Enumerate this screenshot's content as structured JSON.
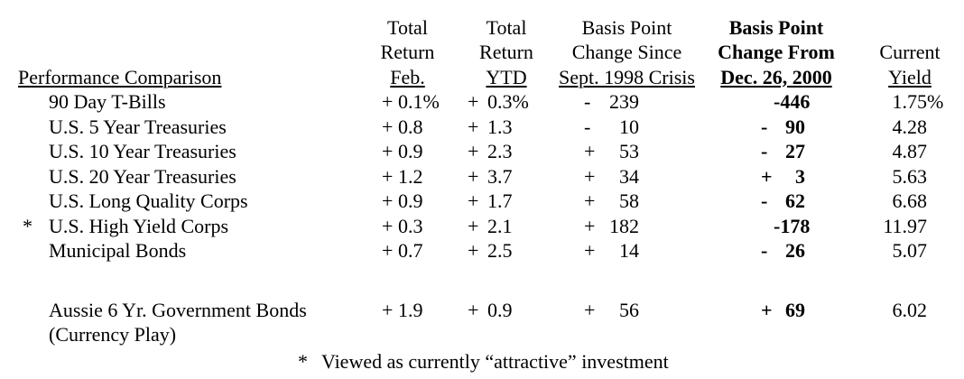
{
  "colors": {
    "text": "#000000",
    "background": "#ffffff"
  },
  "table": {
    "header": {
      "label": "Performance Comparison",
      "columns": [
        {
          "id": "feb",
          "line1": "Total",
          "line2": "Return",
          "line3": "Feb.",
          "bold": false
        },
        {
          "id": "ytd",
          "line1": "Total",
          "line2": "Return",
          "line3": "YTD",
          "bold": false
        },
        {
          "id": "bp98",
          "line1": "Basis Point",
          "line2": "Change Since",
          "line3": "Sept. 1998 Crisis",
          "bold": false
        },
        {
          "id": "bp00",
          "line1": "Basis Point",
          "line2": "Change From",
          "line3": "Dec. 26, 2000",
          "bold": true
        },
        {
          "id": "cur",
          "line1": "",
          "line2": "Current",
          "line3": "Yield",
          "bold": false
        }
      ]
    },
    "rows": [
      {
        "marker": "",
        "label": "90 Day T-Bills",
        "label2": "",
        "feb": {
          "sign": "+",
          "val": "0.1%"
        },
        "ytd": {
          "sign": "+",
          "val": "0.3%"
        },
        "bp98": {
          "sign": "-",
          "val": "239"
        },
        "bp00": {
          "sign": "",
          "val": "-446"
        },
        "cur": {
          "val": "1.75",
          "suffix": "%"
        },
        "spacer_before": false
      },
      {
        "marker": "",
        "label": "U.S. 5 Year Treasuries",
        "label2": "",
        "feb": {
          "sign": "+",
          "val": "0.8"
        },
        "ytd": {
          "sign": "+",
          "val": "1.3"
        },
        "bp98": {
          "sign": "-",
          "val": "10"
        },
        "bp00": {
          "sign": "-",
          "val": "90"
        },
        "cur": {
          "val": "4.28",
          "suffix": ""
        },
        "spacer_before": false
      },
      {
        "marker": "",
        "label": "U.S. 10 Year Treasuries",
        "label2": "",
        "feb": {
          "sign": "+",
          "val": "0.9"
        },
        "ytd": {
          "sign": "+",
          "val": "2.3"
        },
        "bp98": {
          "sign": "+",
          "val": "53"
        },
        "bp00": {
          "sign": "-",
          "val": "27"
        },
        "cur": {
          "val": "4.87",
          "suffix": ""
        },
        "spacer_before": false
      },
      {
        "marker": "",
        "label": "U.S. 20 Year Treasuries",
        "label2": "",
        "feb": {
          "sign": "+",
          "val": "1.2"
        },
        "ytd": {
          "sign": "+",
          "val": "3.7"
        },
        "bp98": {
          "sign": "+",
          "val": "34"
        },
        "bp00": {
          "sign": "+",
          "val": "3"
        },
        "cur": {
          "val": "5.63",
          "suffix": ""
        },
        "spacer_before": false
      },
      {
        "marker": "",
        "label": "U.S. Long Quality Corps",
        "label2": "",
        "feb": {
          "sign": "+",
          "val": "0.9"
        },
        "ytd": {
          "sign": "+",
          "val": "1.7"
        },
        "bp98": {
          "sign": "+",
          "val": "58"
        },
        "bp00": {
          "sign": "-",
          "val": "62"
        },
        "cur": {
          "val": "6.68",
          "suffix": ""
        },
        "spacer_before": false
      },
      {
        "marker": "*",
        "label": "U.S. High Yield Corps",
        "label2": "",
        "feb": {
          "sign": "+",
          "val": "0.3"
        },
        "ytd": {
          "sign": "+",
          "val": "2.1"
        },
        "bp98": {
          "sign": "+",
          "val": "182"
        },
        "bp00": {
          "sign": "",
          "val": "-178"
        },
        "cur": {
          "val": "11.97",
          "suffix": ""
        },
        "spacer_before": false
      },
      {
        "marker": "",
        "label": "Municipal Bonds",
        "label2": "",
        "feb": {
          "sign": "+",
          "val": "0.7"
        },
        "ytd": {
          "sign": "+",
          "val": "2.5"
        },
        "bp98": {
          "sign": "+",
          "val": "14"
        },
        "bp00": {
          "sign": "-",
          "val": "26"
        },
        "cur": {
          "val": "5.07",
          "suffix": ""
        },
        "spacer_before": false
      },
      {
        "marker": "",
        "label": "Aussie 6 Yr. Government Bonds",
        "label2": "(Currency Play)",
        "feb": {
          "sign": "+",
          "val": "1.9"
        },
        "ytd": {
          "sign": "+",
          "val": "0.9"
        },
        "bp98": {
          "sign": "+",
          "val": "56"
        },
        "bp00": {
          "sign": "+",
          "val": "69"
        },
        "cur": {
          "val": "6.02",
          "suffix": ""
        },
        "spacer_before": true
      }
    ]
  },
  "footnote": {
    "marker": "*",
    "text": "Viewed as currently “attractive” investment"
  }
}
